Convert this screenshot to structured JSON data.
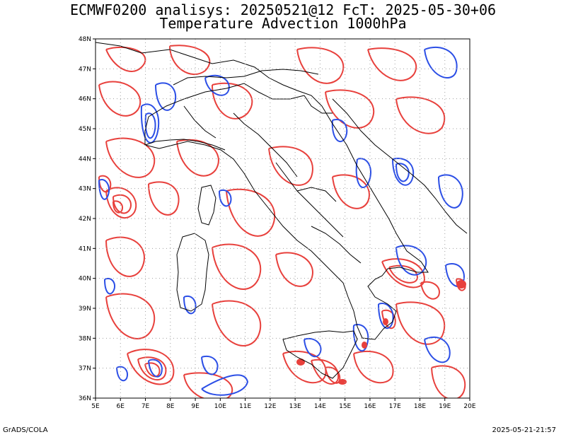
{
  "title_line1": "ECMWF0200 analisys: 20250521@12 FcT: 2025-05-30+06",
  "title_line2": "Temperature Advection 1000hPa",
  "credit": "GrADS/COLA",
  "timestamp": "2025-05-21-21:57",
  "map": {
    "lon_range": [
      5,
      20
    ],
    "lat_range": [
      36,
      48
    ],
    "x_tick_labels": [
      "5E",
      "6E",
      "7E",
      "8E",
      "9E",
      "10E",
      "11E",
      "12E",
      "13E",
      "14E",
      "15E",
      "16E",
      "17E",
      "18E",
      "19E",
      "20E"
    ],
    "y_tick_labels": [
      "36N",
      "37N",
      "38N",
      "39N",
      "40N",
      "41N",
      "42N",
      "43N",
      "44N",
      "45N",
      "46N",
      "47N",
      "48N"
    ],
    "grid": "dotted",
    "colors": {
      "positive_advection": "#e8403c",
      "negative_advection": "#2c4fe6",
      "coastline": "#000000",
      "grid": "#a0a0a0"
    }
  }
}
